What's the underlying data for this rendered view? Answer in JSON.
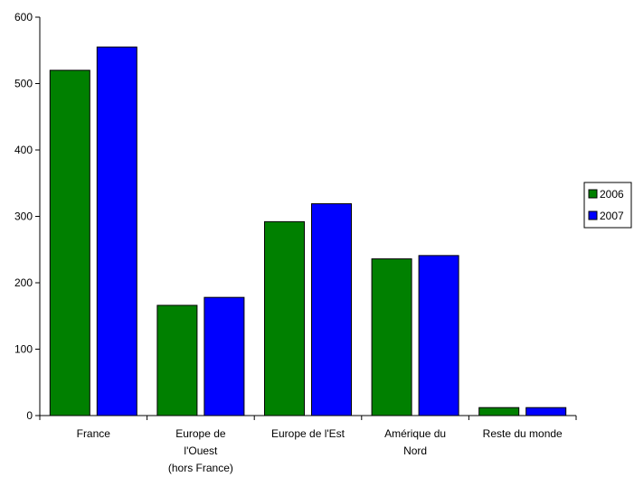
{
  "chart_data": {
    "type": "bar",
    "title": "",
    "xlabel": "",
    "ylabel": "",
    "ylim": [
      0,
      600
    ],
    "yticks": [
      0,
      100,
      200,
      300,
      400,
      500,
      600
    ],
    "grid": false,
    "legend_position": "right",
    "categories": [
      [
        "France"
      ],
      [
        "Europe de",
        "l'Ouest",
        "(hors France)"
      ],
      [
        "Europe de l'Est"
      ],
      [
        "Amérique du",
        "Nord"
      ],
      [
        "Reste du monde"
      ]
    ],
    "series": [
      {
        "name": "2006",
        "color": "#008000",
        "values": [
          520,
          166,
          292,
          236,
          12
        ]
      },
      {
        "name": "2007",
        "color": "#0000ff",
        "values": [
          555,
          178,
          319,
          241,
          12
        ]
      }
    ]
  }
}
